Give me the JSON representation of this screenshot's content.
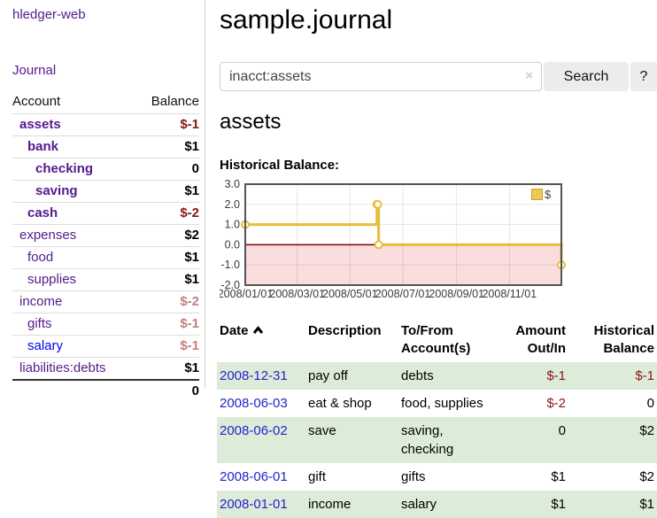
{
  "app": {
    "title": "hledger-web"
  },
  "sidebar": {
    "journal_link": "Journal",
    "accounts": {
      "col_account": "Account",
      "col_balance": "Balance",
      "rows": [
        {
          "name": "assets",
          "indent": 0,
          "bold": true,
          "link": "visited",
          "balance": "$-1",
          "balance_style": "negative-strong"
        },
        {
          "name": "bank",
          "indent": 1,
          "bold": true,
          "link": "visited",
          "balance": "$1",
          "balance_style": "normal"
        },
        {
          "name": "checking",
          "indent": 2,
          "bold": true,
          "link": "visited",
          "balance": "0",
          "balance_style": "normal"
        },
        {
          "name": "saving",
          "indent": 2,
          "bold": true,
          "link": "visited",
          "balance": "$1",
          "balance_style": "normal"
        },
        {
          "name": "cash",
          "indent": 1,
          "bold": true,
          "link": "visited",
          "balance": "$-2",
          "balance_style": "negative-strong"
        },
        {
          "name": "expenses",
          "indent": 0,
          "bold": false,
          "link": "visited",
          "balance": "$2",
          "balance_style": "normal"
        },
        {
          "name": "food",
          "indent": 1,
          "bold": false,
          "link": "visited",
          "balance": "$1",
          "balance_style": "normal"
        },
        {
          "name": "supplies",
          "indent": 1,
          "bold": false,
          "link": "visited",
          "balance": "$1",
          "balance_style": "normal"
        },
        {
          "name": "income",
          "indent": 0,
          "bold": false,
          "link": "visited",
          "balance": "$-2",
          "balance_style": "negative-soft"
        },
        {
          "name": "gifts",
          "indent": 1,
          "bold": false,
          "link": "visited",
          "balance": "$-1",
          "balance_style": "negative-soft"
        },
        {
          "name": "salary",
          "indent": 1,
          "bold": false,
          "link": "unvisited",
          "balance": "$-1",
          "balance_style": "negative-soft"
        },
        {
          "name": "liabilities:debts",
          "indent": 0,
          "bold": false,
          "link": "visited",
          "balance": "$1",
          "balance_style": "normal"
        }
      ],
      "total": "0"
    }
  },
  "header": {
    "title": "sample.journal"
  },
  "search": {
    "value": "inacct:assets",
    "clear_icon": "×",
    "button_label": "Search",
    "help_label": "?"
  },
  "account_page": {
    "title": "assets",
    "chart_heading": "Historical Balance:"
  },
  "chart_data": {
    "type": "line",
    "title": "Historical Balance:",
    "step": true,
    "series": [
      {
        "name": "$",
        "color": "#e8bc3d",
        "points": [
          [
            "2008-01-01",
            1
          ],
          [
            "2008-06-01",
            2
          ],
          [
            "2008-06-02",
            2
          ],
          [
            "2008-06-03",
            0
          ],
          [
            "2008-12-31",
            -1
          ]
        ]
      }
    ],
    "xlim": [
      "2008-01-01",
      "2008-12-31"
    ],
    "ylim": [
      -2,
      3
    ],
    "y_tick_labels": [
      "3.0",
      "2.0",
      "1.0",
      "0.0",
      "-1.0",
      "-2.0"
    ],
    "x_tick_labels": [
      "2008/01/01",
      "2008/03/01",
      "2008/05/01",
      "2008/07/01",
      "2008/09/01",
      "2008/11/01"
    ],
    "grid": true,
    "negative_region_fill": "#fadddd",
    "zero_line_color": "#7d0000",
    "border_color": "#545454",
    "legend": {
      "label": "$",
      "position": "top-right",
      "swatch_color": "#eec955"
    }
  },
  "register": {
    "headers": {
      "date": "Date",
      "description": "Description",
      "accounts": "To/From\nAccount(s)",
      "amount": "Amount\nOut/In",
      "balance": "Historical\nBalance"
    },
    "rows": [
      {
        "date": "2008-12-31",
        "description": "pay off",
        "accounts": "debts",
        "amount": "$-1",
        "amount_neg": true,
        "balance": "$-1",
        "balance_neg": true,
        "shaded": true
      },
      {
        "date": "2008-06-03",
        "description": "eat & shop",
        "accounts": "food, supplies",
        "amount": "$-2",
        "amount_neg": true,
        "balance": "0",
        "balance_neg": false,
        "shaded": false
      },
      {
        "date": "2008-06-02",
        "description": "save",
        "accounts": "saving,\nchecking",
        "amount": "0",
        "amount_neg": false,
        "balance": "$2",
        "balance_neg": false,
        "shaded": true
      },
      {
        "date": "2008-06-01",
        "description": "gift",
        "accounts": "gifts",
        "amount": "$1",
        "amount_neg": false,
        "balance": "$2",
        "balance_neg": false,
        "shaded": false
      },
      {
        "date": "2008-01-01",
        "description": "income",
        "accounts": "salary",
        "amount": "$1",
        "amount_neg": false,
        "balance": "$1",
        "balance_neg": false,
        "shaded": true
      }
    ]
  }
}
